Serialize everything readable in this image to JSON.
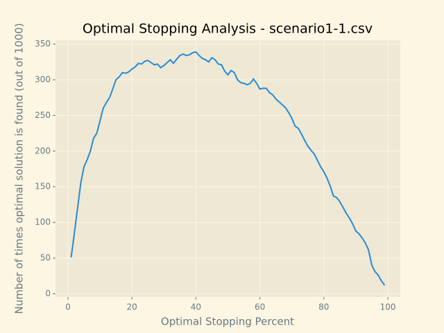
{
  "chart_data": {
    "type": "line",
    "title": "Optimal Stopping Analysis - scenario1-1.csv",
    "x_label": "Optimal Stopping Percent",
    "y_label": "Number of times optimal solution is found (out of 1000)",
    "x": [
      1,
      2,
      3,
      4,
      5,
      6,
      7,
      8,
      9,
      10,
      11,
      12,
      13,
      14,
      15,
      16,
      17,
      18,
      19,
      20,
      21,
      22,
      23,
      24,
      25,
      26,
      27,
      28,
      29,
      30,
      31,
      32,
      33,
      34,
      35,
      36,
      37,
      38,
      39,
      40,
      41,
      42,
      43,
      44,
      45,
      46,
      47,
      48,
      49,
      50,
      51,
      52,
      53,
      54,
      55,
      56,
      57,
      58,
      59,
      60,
      61,
      62,
      63,
      64,
      65,
      66,
      67,
      68,
      69,
      70,
      71,
      72,
      73,
      74,
      75,
      76,
      77,
      78,
      79,
      80,
      81,
      82,
      83,
      84,
      85,
      86,
      87,
      88,
      89,
      90,
      91,
      92,
      93,
      94,
      95,
      96,
      97,
      98,
      99
    ],
    "series": [
      {
        "color": "#268bd2",
        "values": [
          51,
          85,
          120,
          155,
          178,
          188,
          200,
          218,
          225,
          242,
          260,
          268,
          275,
          287,
          300,
          304,
          310,
          309,
          311,
          315,
          318,
          323,
          322,
          326,
          327,
          324,
          321,
          322,
          317,
          320,
          324,
          328,
          323,
          329,
          334,
          336,
          334,
          335,
          338,
          339,
          334,
          330,
          328,
          325,
          331,
          328,
          322,
          321,
          312,
          307,
          313,
          310,
          300,
          296,
          295,
          293,
          295,
          301,
          295,
          287,
          288,
          288,
          282,
          279,
          273,
          269,
          265,
          261,
          254,
          246,
          235,
          232,
          224,
          215,
          207,
          201,
          196,
          187,
          178,
          171,
          162,
          151,
          137,
          135,
          129,
          121,
          113,
          106,
          98,
          88,
          84,
          78,
          71,
          61,
          40,
          31,
          26,
          18,
          12
        ]
      }
    ],
    "xlim": [
      -3.9,
      103.9
    ],
    "xticks": [
      0,
      20,
      40,
      60,
      80,
      100
    ],
    "ylim": [
      -4.4,
      355.4
    ],
    "yticks": [
      0,
      50,
      100,
      150,
      200,
      250,
      300,
      350
    ],
    "grid": true
  }
}
